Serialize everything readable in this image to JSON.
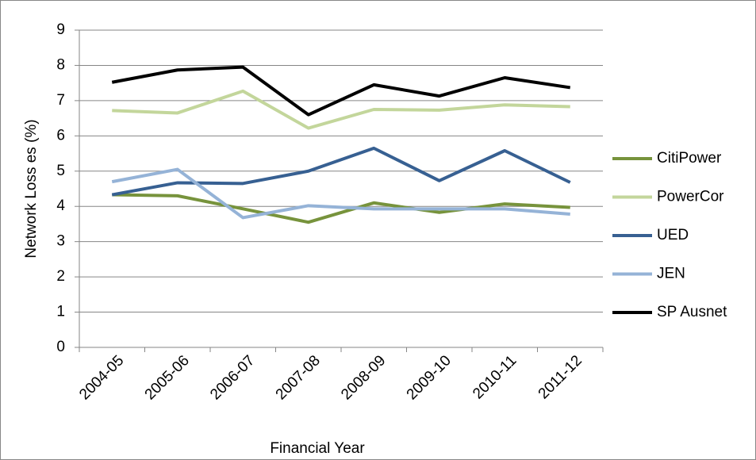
{
  "chart_data": {
    "type": "line",
    "y_label": "Network Loss es (%)",
    "x_label": "Financial Year",
    "categories": [
      "2004-05",
      "2005-06",
      "2006-07",
      "2007-08",
      "2008-09",
      "2009-10",
      "2010-11",
      "2011-12"
    ],
    "series": [
      {
        "name": "CitiPower",
        "color": "#77933c",
        "values": [
          4.33,
          4.3,
          3.93,
          3.55,
          4.1,
          3.83,
          4.07,
          3.97
        ]
      },
      {
        "name": "PowerCor",
        "color": "#c3d69b",
        "values": [
          6.72,
          6.65,
          7.27,
          6.22,
          6.75,
          6.73,
          6.88,
          6.83
        ]
      },
      {
        "name": "UED",
        "color": "#376092",
        "values": [
          4.33,
          4.67,
          4.65,
          5.0,
          5.65,
          4.73,
          5.58,
          4.68
        ]
      },
      {
        "name": "JEN",
        "color": "#95b3d7",
        "values": [
          4.7,
          5.05,
          3.68,
          4.02,
          3.93,
          3.93,
          3.93,
          3.78
        ]
      },
      {
        "name": "SP Ausnet",
        "color": "#000000",
        "values": [
          7.52,
          7.87,
          7.95,
          6.6,
          7.45,
          7.13,
          7.65,
          7.37
        ]
      }
    ],
    "ylim": [
      0,
      9
    ],
    "yticks": [
      0,
      1,
      2,
      3,
      4,
      5,
      6,
      7,
      8,
      9
    ],
    "grid": true,
    "legend": "right"
  }
}
